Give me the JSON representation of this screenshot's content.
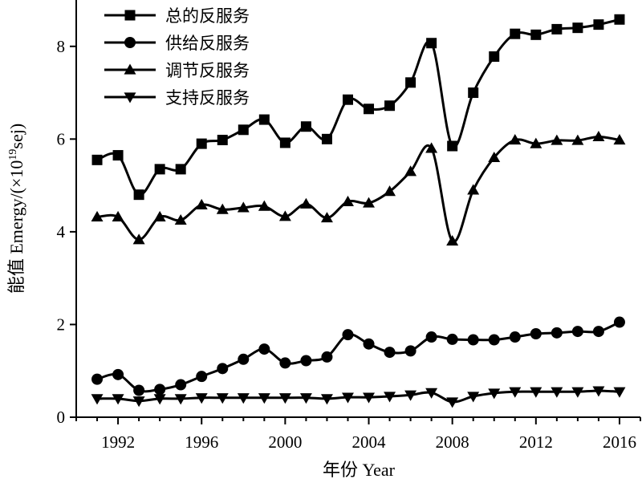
{
  "chart_data": {
    "type": "line",
    "xlabel": "年份 Year",
    "ylabel_prefix": "能值 Emergy/(×10",
    "ylabel_sup": "19",
    "ylabel_suffix": "sej)",
    "xlim": [
      1990,
      2017
    ],
    "ylim": [
      0,
      9
    ],
    "x_ticks": [
      1992,
      1996,
      2000,
      2004,
      2008,
      2012,
      2016
    ],
    "y_ticks": [
      0,
      2,
      4,
      6,
      8
    ],
    "legend_position": "top-left",
    "x": [
      1991,
      1992,
      1993,
      1994,
      1995,
      1996,
      1997,
      1998,
      1999,
      2000,
      2001,
      2002,
      2003,
      2004,
      2005,
      2006,
      2007,
      2008,
      2009,
      2010,
      2011,
      2012,
      2013,
      2014,
      2015,
      2016
    ],
    "series": [
      {
        "name": "总的反服务",
        "marker": "square",
        "values": [
          5.55,
          5.65,
          4.8,
          5.35,
          5.35,
          5.9,
          5.98,
          6.2,
          6.42,
          5.92,
          6.27,
          6.0,
          6.85,
          6.65,
          6.72,
          7.22,
          8.07,
          5.85,
          7.0,
          7.78,
          8.27,
          8.25,
          8.37,
          8.4,
          8.47,
          8.58
        ]
      },
      {
        "name": "供给反服务",
        "marker": "circle",
        "values": [
          0.82,
          0.92,
          0.58,
          0.6,
          0.7,
          0.88,
          1.05,
          1.25,
          1.47,
          1.17,
          1.22,
          1.3,
          1.78,
          1.58,
          1.4,
          1.43,
          1.73,
          1.68,
          1.67,
          1.67,
          1.73,
          1.8,
          1.82,
          1.85,
          1.85,
          2.05
        ]
      },
      {
        "name": "调节反服务",
        "marker": "triangle-up",
        "values": [
          4.32,
          4.32,
          3.83,
          4.32,
          4.25,
          4.58,
          4.48,
          4.52,
          4.55,
          4.33,
          4.6,
          4.3,
          4.65,
          4.62,
          4.87,
          5.3,
          5.8,
          3.8,
          4.9,
          5.6,
          5.98,
          5.9,
          5.97,
          5.97,
          6.05,
          5.98
        ]
      },
      {
        "name": "支持反服务",
        "marker": "triangle-down",
        "values": [
          0.4,
          0.4,
          0.35,
          0.4,
          0.4,
          0.42,
          0.42,
          0.42,
          0.42,
          0.42,
          0.42,
          0.4,
          0.43,
          0.43,
          0.45,
          0.48,
          0.53,
          0.33,
          0.45,
          0.52,
          0.55,
          0.55,
          0.55,
          0.55,
          0.57,
          0.55
        ]
      }
    ]
  },
  "style": {
    "line_color": "#000000",
    "background": "#ffffff"
  }
}
